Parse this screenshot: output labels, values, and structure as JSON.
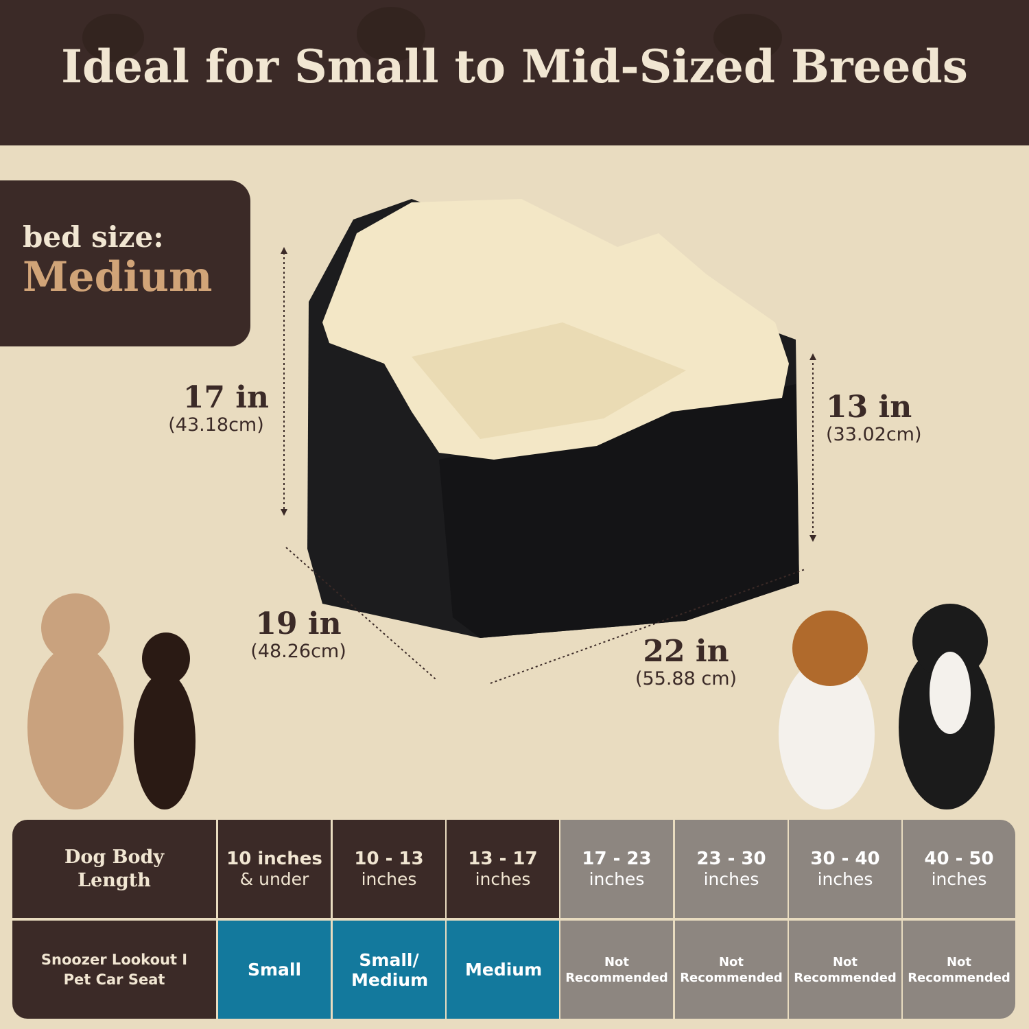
{
  "header": {
    "title": "Ideal for Small to Mid-Sized Breeds"
  },
  "bed_size": {
    "label": "bed size:",
    "value": "Medium"
  },
  "dimensions": {
    "height_left": {
      "value": "17 in",
      "metric": "(43.18cm)"
    },
    "height_right": {
      "value": "13 in",
      "metric": "(33.02cm)"
    },
    "depth": {
      "value": "19 in",
      "metric": "(48.26cm)"
    },
    "width": {
      "value": "22 in",
      "metric": "(55.88 cm)"
    }
  },
  "colors": {
    "brown": "#3b2a27",
    "tan": "#d1a478",
    "teal": "#13799d",
    "gray": "#8d8680",
    "background": "#e9dcc0"
  },
  "table": {
    "row_headers": [
      "Dog Body Length",
      "Snoozer Lookout I Pet Car Seat"
    ],
    "columns": [
      {
        "top": "10 inches",
        "bottom": "& under",
        "fit": "Small",
        "recommended": true
      },
      {
        "top": "10 - 13",
        "bottom": "inches",
        "fit": "Small/ Medium",
        "recommended": true
      },
      {
        "top": "13 - 17",
        "bottom": "inches",
        "fit": "Medium",
        "recommended": true
      },
      {
        "top": "17 - 23",
        "bottom": "inches",
        "fit": "Not Recommended",
        "recommended": false
      },
      {
        "top": "23 - 30",
        "bottom": "inches",
        "fit": "Not Recommended",
        "recommended": false
      },
      {
        "top": "30 - 40",
        "bottom": "inches",
        "fit": "Not Recommended",
        "recommended": false
      },
      {
        "top": "40 - 50",
        "bottom": "inches",
        "fit": "Not Recommended",
        "recommended": false
      }
    ]
  }
}
